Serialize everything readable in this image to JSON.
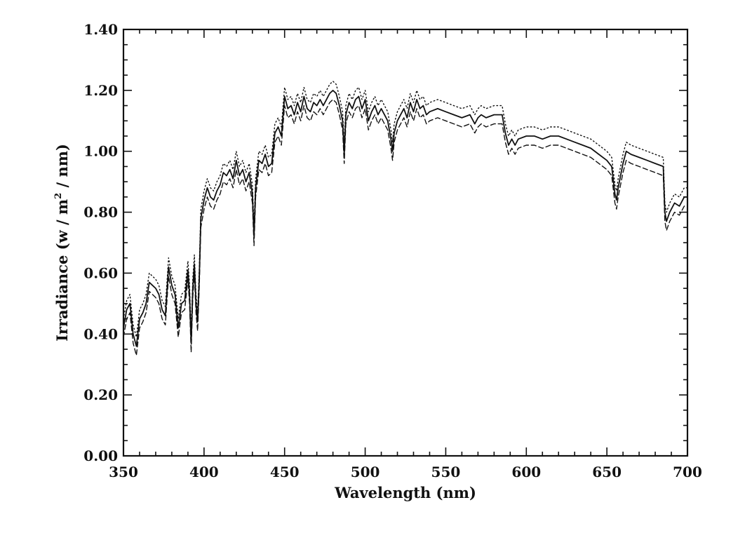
{
  "chart_data": {
    "type": "line",
    "title": "",
    "xlabel": "Wavelength (nm)",
    "ylabel_parts": [
      "Irradiance (w / m",
      "2",
      " / nm)"
    ],
    "xlim": [
      350,
      700
    ],
    "ylim": [
      0,
      1.4
    ],
    "x_ticks": [
      350,
      400,
      450,
      500,
      550,
      600,
      650,
      700
    ],
    "x_tick_labels": [
      "350",
      "400",
      "450",
      "500",
      "550",
      "600",
      "650",
      "700"
    ],
    "y_ticks": [
      0,
      0.2,
      0.4,
      0.6,
      0.8,
      1.0,
      1.2,
      1.4
    ],
    "y_tick_labels": [
      "0.00",
      "0.20",
      "0.40",
      "0.60",
      "0.80",
      "1.00",
      "1.20",
      "1.40"
    ],
    "grid": false,
    "legend": "none",
    "series": [
      {
        "style": "solid",
        "color": "#111111",
        "points": [
          [
            350,
            0.42
          ],
          [
            352,
            0.48
          ],
          [
            354,
            0.5
          ],
          [
            356,
            0.4
          ],
          [
            358,
            0.36
          ],
          [
            360,
            0.45
          ],
          [
            362,
            0.47
          ],
          [
            364,
            0.5
          ],
          [
            366,
            0.57
          ],
          [
            368,
            0.56
          ],
          [
            370,
            0.55
          ],
          [
            372,
            0.53
          ],
          [
            374,
            0.48
          ],
          [
            376,
            0.46
          ],
          [
            378,
            0.62
          ],
          [
            380,
            0.56
          ],
          [
            382,
            0.53
          ],
          [
            384,
            0.42
          ],
          [
            386,
            0.5
          ],
          [
            388,
            0.51
          ],
          [
            390,
            0.61
          ],
          [
            391,
            0.53
          ],
          [
            392,
            0.37
          ],
          [
            393,
            0.55
          ],
          [
            394,
            0.63
          ],
          [
            395,
            0.5
          ],
          [
            396,
            0.44
          ],
          [
            397,
            0.58
          ],
          [
            398,
            0.78
          ],
          [
            400,
            0.84
          ],
          [
            402,
            0.88
          ],
          [
            404,
            0.85
          ],
          [
            406,
            0.84
          ],
          [
            408,
            0.87
          ],
          [
            410,
            0.89
          ],
          [
            412,
            0.93
          ],
          [
            414,
            0.92
          ],
          [
            416,
            0.94
          ],
          [
            418,
            0.91
          ],
          [
            420,
            0.97
          ],
          [
            422,
            0.92
          ],
          [
            424,
            0.94
          ],
          [
            426,
            0.9
          ],
          [
            428,
            0.93
          ],
          [
            430,
            0.86
          ],
          [
            431,
            0.72
          ],
          [
            432,
            0.88
          ],
          [
            434,
            0.97
          ],
          [
            436,
            0.96
          ],
          [
            438,
            0.99
          ],
          [
            440,
            0.95
          ],
          [
            442,
            0.96
          ],
          [
            444,
            1.06
          ],
          [
            446,
            1.08
          ],
          [
            448,
            1.05
          ],
          [
            450,
            1.18
          ],
          [
            452,
            1.14
          ],
          [
            454,
            1.15
          ],
          [
            456,
            1.12
          ],
          [
            458,
            1.16
          ],
          [
            460,
            1.13
          ],
          [
            462,
            1.18
          ],
          [
            464,
            1.14
          ],
          [
            466,
            1.13
          ],
          [
            468,
            1.16
          ],
          [
            470,
            1.15
          ],
          [
            472,
            1.17
          ],
          [
            474,
            1.15
          ],
          [
            476,
            1.17
          ],
          [
            478,
            1.19
          ],
          [
            480,
            1.2
          ],
          [
            482,
            1.19
          ],
          [
            484,
            1.15
          ],
          [
            486,
            1.1
          ],
          [
            487,
            0.99
          ],
          [
            488,
            1.12
          ],
          [
            490,
            1.16
          ],
          [
            492,
            1.14
          ],
          [
            494,
            1.17
          ],
          [
            496,
            1.18
          ],
          [
            498,
            1.14
          ],
          [
            500,
            1.17
          ],
          [
            502,
            1.1
          ],
          [
            504,
            1.13
          ],
          [
            506,
            1.15
          ],
          [
            508,
            1.12
          ],
          [
            510,
            1.14
          ],
          [
            512,
            1.12
          ],
          [
            514,
            1.1
          ],
          [
            516,
            1.04
          ],
          [
            517,
            1.0
          ],
          [
            518,
            1.06
          ],
          [
            520,
            1.1
          ],
          [
            522,
            1.12
          ],
          [
            524,
            1.14
          ],
          [
            526,
            1.11
          ],
          [
            528,
            1.16
          ],
          [
            530,
            1.13
          ],
          [
            532,
            1.17
          ],
          [
            534,
            1.14
          ],
          [
            536,
            1.15
          ],
          [
            538,
            1.12
          ],
          [
            540,
            1.13
          ],
          [
            545,
            1.14
          ],
          [
            550,
            1.13
          ],
          [
            555,
            1.12
          ],
          [
            560,
            1.11
          ],
          [
            565,
            1.12
          ],
          [
            568,
            1.09
          ],
          [
            570,
            1.11
          ],
          [
            572,
            1.12
          ],
          [
            575,
            1.11
          ],
          [
            580,
            1.12
          ],
          [
            585,
            1.12
          ],
          [
            587,
            1.06
          ],
          [
            589,
            1.02
          ],
          [
            591,
            1.04
          ],
          [
            593,
            1.02
          ],
          [
            595,
            1.04
          ],
          [
            600,
            1.05
          ],
          [
            605,
            1.05
          ],
          [
            610,
            1.04
          ],
          [
            615,
            1.05
          ],
          [
            620,
            1.05
          ],
          [
            625,
            1.04
          ],
          [
            630,
            1.03
          ],
          [
            635,
            1.02
          ],
          [
            640,
            1.01
          ],
          [
            645,
            0.99
          ],
          [
            650,
            0.97
          ],
          [
            653,
            0.95
          ],
          [
            655,
            0.86
          ],
          [
            656,
            0.84
          ],
          [
            657,
            0.88
          ],
          [
            660,
            0.96
          ],
          [
            662,
            1.0
          ],
          [
            665,
            0.99
          ],
          [
            670,
            0.98
          ],
          [
            675,
            0.97
          ],
          [
            680,
            0.96
          ],
          [
            685,
            0.95
          ],
          [
            686,
            0.8
          ],
          [
            687,
            0.77
          ],
          [
            689,
            0.8
          ],
          [
            692,
            0.83
          ],
          [
            695,
            0.82
          ],
          [
            698,
            0.85
          ],
          [
            700,
            0.85
          ]
        ]
      },
      {
        "style": "dotted",
        "color": "#111111",
        "offset": 0.03,
        "derived_from_series": 0
      },
      {
        "style": "dashed",
        "color": "#111111",
        "offset": -0.03,
        "derived_from_series": 0
      }
    ]
  }
}
